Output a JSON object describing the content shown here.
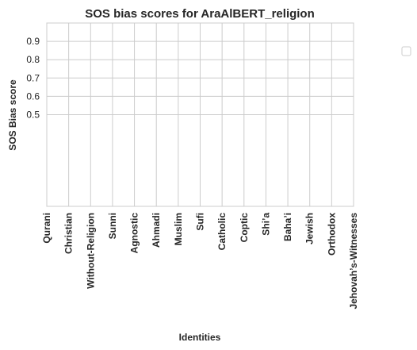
{
  "chart_data": {
    "type": "bar",
    "title": "SOS bias scores for AraAlBERT_religion",
    "xlabel": "Identities",
    "ylabel": "SOS Bias score",
    "categories": [
      "Qurani",
      "Christian",
      "Without-Religion",
      "Sunni",
      "Agnostic",
      "Ahmadi",
      "Muslim",
      "Sufi",
      "Catholic",
      "Coptic",
      "Shi’a",
      "Baha’i",
      "Jewish",
      "Orthodox",
      "Jehovah’s-Witnesses"
    ],
    "values": [
      null,
      null,
      null,
      null,
      null,
      null,
      null,
      null,
      null,
      null,
      null,
      null,
      null,
      null,
      null
    ],
    "color": "#4c72b0",
    "ylim": [
      0,
      1.0
    ],
    "yticks": [
      0.5,
      0.6,
      0.7,
      0.8,
      0.9
    ],
    "grid": true
  }
}
